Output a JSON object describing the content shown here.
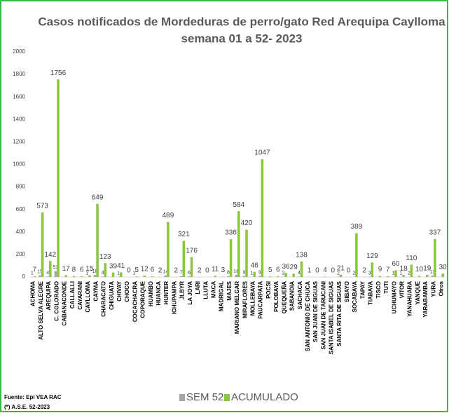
{
  "chart_data": {
    "type": "bar",
    "title": [
      "Casos notificados de Mordeduras de perro/gato Red Arequipa Caylloma",
      "semana 01 a 52- 2023"
    ],
    "categories": [
      "ACHOMA",
      "ALTO SELVA ALEGRE",
      "AREQUIPA",
      "C. COLORADO",
      "CABANACONDE",
      "CALLALLI",
      "CAYARANI",
      "CAYLLOMA",
      "CAYMA",
      "CHARACATO",
      "CHIGUATA",
      "CHIVAY",
      "CHOCO",
      "COCACHACRA",
      "COPORAQUE",
      "HUAMBO",
      "HUANCA",
      "HUNTER",
      "ICHUPAMPA",
      "JLBYR",
      "LA JOYA",
      "LARI",
      "LLUTA",
      "MACA",
      "MADRIGAL",
      "MAJES",
      "MARIANO MELGAR",
      "MIRAFLORES",
      "MOLLEBAYA",
      "PAUCARPATA",
      "POCSI",
      "POLOBAYA",
      "QUEQUEÑA",
      "SABANDIA",
      "SACHACA",
      "SAN ANTONIO DE CHUCA",
      "SAN JUAN DE SIGUAS",
      "SAN JUAN DE TARUCANI",
      "SANTA ISABEL DE SIGUAS",
      "SANTA RITA DE SIGUAS",
      "SIBAYO",
      "SOCABAYA",
      "TAPAY",
      "TIABAYA",
      "TISCO",
      "TUTI",
      "UCHUMAYO",
      "VITOR",
      "YANAHUARA",
      "YANQUE",
      "YARABAMBA",
      "YURA",
      "Otros"
    ],
    "series": [
      {
        "name": "SEM 52",
        "color": "#a6a6a6",
        "values": [
          1,
          15,
          4,
          53,
          null,
          null,
          null,
          1,
          18,
          4,
          null,
          1,
          null,
          1,
          null,
          null,
          null,
          14,
          null,
          7,
          6,
          null,
          null,
          null,
          null,
          8,
          18,
          9,
          1,
          9,
          null,
          null,
          2,
          null,
          4,
          null,
          null,
          null,
          null,
          2,
          null,
          2,
          null,
          3,
          null,
          null,
          1,
          1,
          2,
          null,
          null,
          13,
          null
        ]
      },
      {
        "name": "ACUMULADO",
        "color": "#8cc63f",
        "values": [
          7,
          573,
          142,
          1756,
          17,
          8,
          6,
          15,
          649,
          123,
          39,
          41,
          0,
          5,
          12,
          6,
          2,
          489,
          2,
          321,
          176,
          2,
          0,
          11,
          3,
          336,
          584,
          420,
          46,
          1047,
          5,
          6,
          36,
          29,
          138,
          1,
          0,
          4,
          0,
          21,
          0,
          389,
          2,
          129,
          9,
          7,
          60,
          18,
          110,
          10,
          19,
          337,
          30
        ]
      }
    ],
    "ylim": [
      0,
      2000
    ],
    "yticks": [
      0,
      200,
      400,
      600,
      800,
      1000,
      1200,
      1400,
      1600,
      1800,
      2000
    ],
    "grid": false,
    "notes": [
      "Fuente: Epi VEA RAC",
      "(*) A.S.E. 52-2023"
    ]
  }
}
